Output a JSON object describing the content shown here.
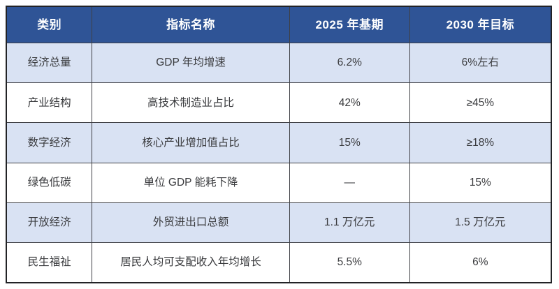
{
  "chart_data": {
    "type": "table",
    "columns": [
      "类别",
      "指标名称",
      "2025 年基期",
      "2030 年目标"
    ],
    "rows": [
      [
        "经济总量",
        "GDP 年均增速",
        "6.2%",
        "6%左右"
      ],
      [
        "产业结构",
        "高技术制造业占比",
        "42%",
        "≥45%"
      ],
      [
        "数字经济",
        "核心产业增加值占比",
        "15%",
        "≥18%"
      ],
      [
        "绿色低碳",
        "单位 GDP 能耗下降",
        "—",
        "15%"
      ],
      [
        "开放经济",
        "外贸进出口总额",
        "1.1 万亿元",
        "1.5 万亿元"
      ],
      [
        "民生福祉",
        "居民人均可支配收入年均增长",
        "5.5%",
        "6%"
      ]
    ],
    "layout": {
      "header_position": "top",
      "zebra_striping": true,
      "grid": true
    }
  },
  "colors": {
    "header_bg": "#2F5496",
    "header_text": "#FFFFFF",
    "row_alt_bg": "#D9E2F3",
    "row_bg": "#FFFFFF",
    "border": "#3F4045",
    "outer_border": "#222326",
    "body_text": "#3A3B3E"
  }
}
